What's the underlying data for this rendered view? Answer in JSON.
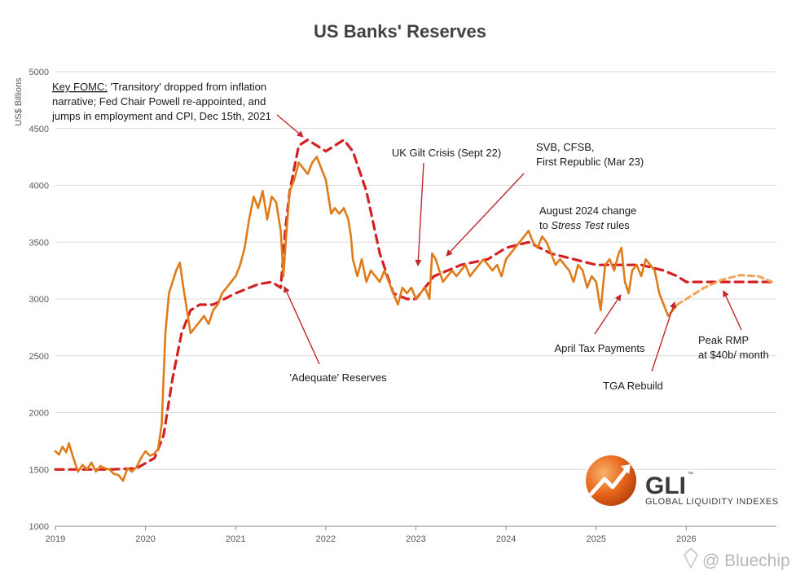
{
  "chart_data": {
    "type": "line",
    "title": "US Banks' Reserves",
    "ylabel": "US$ Billions",
    "xlabel": "",
    "ylim": [
      1000,
      5000
    ],
    "xlim": [
      2019.0,
      2027.0
    ],
    "y_ticks": [
      "1000",
      "1500",
      "2000",
      "2500",
      "3000",
      "3500",
      "4000",
      "4500",
      "5000"
    ],
    "x_ticks": [
      "2019",
      "2020",
      "2021",
      "2022",
      "2023",
      "2024",
      "2025",
      "2026"
    ],
    "grid": true,
    "series": [
      {
        "style": "solid",
        "color": "#e07b1a",
        "x": [
          2019.0,
          2019.04,
          2019.08,
          2019.12,
          2019.15,
          2019.2,
          2019.25,
          2019.3,
          2019.35,
          2019.4,
          2019.45,
          2019.5,
          2019.55,
          2019.6,
          2019.65,
          2019.7,
          2019.75,
          2019.8,
          2019.85,
          2019.9,
          2019.95,
          2020.0,
          2020.05,
          2020.1,
          2020.14,
          2020.18,
          2020.22,
          2020.26,
          2020.3,
          2020.34,
          2020.38,
          2020.42,
          2020.46,
          2020.5,
          2020.55,
          2020.6,
          2020.65,
          2020.7,
          2020.75,
          2020.8,
          2020.85,
          2020.9,
          2020.95,
          2021.0,
          2021.05,
          2021.1,
          2021.15,
          2021.2,
          2021.25,
          2021.3,
          2021.35,
          2021.4,
          2021.45,
          2021.5,
          2021.53,
          2021.56,
          2021.6,
          2021.65,
          2021.7,
          2021.75,
          2021.8,
          2021.85,
          2021.9,
          2021.95,
          2022.0,
          2022.03,
          2022.06,
          2022.1,
          2022.15,
          2022.2,
          2022.25,
          2022.28,
          2022.3,
          2022.35,
          2022.4,
          2022.45,
          2022.5,
          2022.55,
          2022.6,
          2022.65,
          2022.7,
          2022.75,
          2022.8,
          2022.85,
          2022.9,
          2022.95,
          2023.0,
          2023.05,
          2023.1,
          2023.15,
          2023.18,
          2023.22,
          2023.26,
          2023.3,
          2023.35,
          2023.4,
          2023.45,
          2023.5,
          2023.55,
          2023.6,
          2023.65,
          2023.7,
          2023.75,
          2023.8,
          2023.85,
          2023.9,
          2023.95,
          2024.0,
          2024.05,
          2024.1,
          2024.15,
          2024.2,
          2024.25,
          2024.3,
          2024.35,
          2024.4,
          2024.45,
          2024.5,
          2024.55,
          2024.6,
          2024.65,
          2024.7,
          2024.75,
          2024.8,
          2024.85,
          2024.9,
          2024.95,
          2025.0,
          2025.05,
          2025.1,
          2025.15,
          2025.2,
          2025.25,
          2025.28,
          2025.32,
          2025.36,
          2025.4,
          2025.45,
          2025.5,
          2025.55,
          2025.6,
          2025.65,
          2025.7,
          2025.75,
          2025.8,
          2025.85,
          2025.9
        ],
        "y": [
          1660,
          1630,
          1700,
          1650,
          1730,
          1600,
          1480,
          1540,
          1500,
          1560,
          1480,
          1530,
          1510,
          1500,
          1460,
          1450,
          1400,
          1510,
          1480,
          1520,
          1600,
          1660,
          1620,
          1640,
          1680,
          1900,
          2700,
          3050,
          3150,
          3250,
          3320,
          3100,
          2900,
          2700,
          2750,
          2800,
          2850,
          2780,
          2900,
          2950,
          3050,
          3100,
          3150,
          3200,
          3300,
          3450,
          3700,
          3900,
          3800,
          3950,
          3700,
          3900,
          3850,
          3600,
          3200,
          3550,
          3950,
          4050,
          4200,
          4150,
          4100,
          4200,
          4250,
          4150,
          4050,
          3900,
          3750,
          3800,
          3750,
          3800,
          3700,
          3550,
          3350,
          3200,
          3350,
          3150,
          3250,
          3200,
          3150,
          3250,
          3150,
          3050,
          2950,
          3100,
          3050,
          3100,
          3000,
          3050,
          3100,
          3000,
          3400,
          3350,
          3250,
          3150,
          3200,
          3250,
          3200,
          3250,
          3300,
          3200,
          3250,
          3300,
          3350,
          3300,
          3250,
          3300,
          3200,
          3350,
          3400,
          3450,
          3500,
          3550,
          3600,
          3500,
          3450,
          3550,
          3500,
          3400,
          3300,
          3350,
          3300,
          3250,
          3150,
          3300,
          3250,
          3100,
          3200,
          3150,
          2900,
          3300,
          3350,
          3250,
          3400,
          3450,
          3150,
          3050,
          3250,
          3300,
          3200,
          3350,
          3300,
          3250,
          3050,
          2950,
          2850,
          2900,
          2950
        ]
      },
      {
        "style": "dashed-projection",
        "color": "#f0a35c",
        "x": [
          2025.9,
          2026.0,
          2026.2,
          2026.4,
          2026.6,
          2026.8,
          2026.95
        ],
        "y": [
          2950,
          3000,
          3100,
          3170,
          3210,
          3200,
          3150
        ]
      },
      {
        "style": "dashed",
        "color": "#d42020",
        "x": [
          2019.0,
          2019.3,
          2019.6,
          2019.9,
          2020.1,
          2020.2,
          2020.3,
          2020.4,
          2020.5,
          2020.6,
          2020.75,
          2021.0,
          2021.25,
          2021.4,
          2021.5,
          2021.55,
          2021.6,
          2021.7,
          2021.8,
          2021.9,
          2022.0,
          2022.1,
          2022.2,
          2022.3,
          2022.45,
          2022.6,
          2022.75,
          2022.9,
          2023.0,
          2023.2,
          2023.5,
          2023.8,
          2024.0,
          2024.25,
          2024.5,
          2024.75,
          2025.0,
          2025.25,
          2025.5,
          2025.75,
          2025.9,
          2026.0,
          2026.5,
          2027.0
        ],
        "y": [
          1500,
          1500,
          1500,
          1510,
          1600,
          1800,
          2300,
          2700,
          2900,
          2950,
          2950,
          3050,
          3130,
          3150,
          3100,
          3600,
          3950,
          4350,
          4400,
          4350,
          4300,
          4350,
          4400,
          4300,
          3950,
          3400,
          3050,
          3000,
          3000,
          3200,
          3300,
          3350,
          3450,
          3500,
          3400,
          3350,
          3300,
          3300,
          3300,
          3250,
          3200,
          3150,
          3150,
          3150
        ]
      }
    ],
    "annotations": [
      {
        "lines": [
          "Key FOMC: 'Transitory' dropped from inflation",
          "narrative; Fed Chair Powell re-appointed, and",
          "jumps in employment  and CPI, Dec 15th, 2021"
        ],
        "underlined_prefix": "Key FOMC:"
      },
      {
        "lines": [
          "UK Gilt Crisis (Sept 22)"
        ]
      },
      {
        "lines": [
          "SVB, CFSB,",
          "First Republic (Mar 23)"
        ]
      },
      {
        "lines": [
          "August 2024 change",
          "to Stress Test rules"
        ],
        "italic_part": "Stress Test"
      },
      {
        "lines": [
          "'Adequate' Reserves"
        ]
      },
      {
        "lines": [
          "April Tax Payments"
        ]
      },
      {
        "lines": [
          "TGA Rebuild"
        ]
      },
      {
        "lines": [
          "Peak RMP",
          "at $40b/ month"
        ]
      }
    ]
  },
  "logo": {
    "name": "GLI",
    "tm": "™",
    "subtitle": "GLOBAL LIQUIDITY INDEXES",
    "icon": "rising-arrow-globe-icon",
    "color": "#e8641a"
  },
  "watermark": {
    "icon": "bluechip-diamond-icon",
    "text": "@ Bluechip"
  }
}
